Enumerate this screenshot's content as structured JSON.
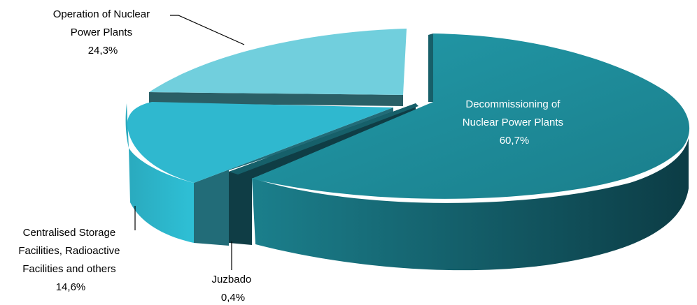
{
  "chart_data": {
    "type": "pie",
    "style": "3d-exploded",
    "title": "",
    "slices": [
      {
        "name_lines": [
          "Decommissioning of",
          "Nuclear Power Plants"
        ],
        "value_label": "60,7%",
        "value": 60.7,
        "color": "#1f8b99"
      },
      {
        "name_lines": [
          "Juzbado"
        ],
        "value_label": "0,4%",
        "value": 0.4,
        "color": "#16606a"
      },
      {
        "name_lines": [
          "Centralised Storage",
          "Facilities, Radioactive",
          "Facilities and others"
        ],
        "value_label": "14,6%",
        "value": 14.6,
        "color": "#2fb8cf"
      },
      {
        "name_lines": [
          "Operation of Nuclear",
          "Power Plants"
        ],
        "value_label": "24,3%",
        "value": 24.3,
        "color": "#73d0de"
      }
    ]
  }
}
